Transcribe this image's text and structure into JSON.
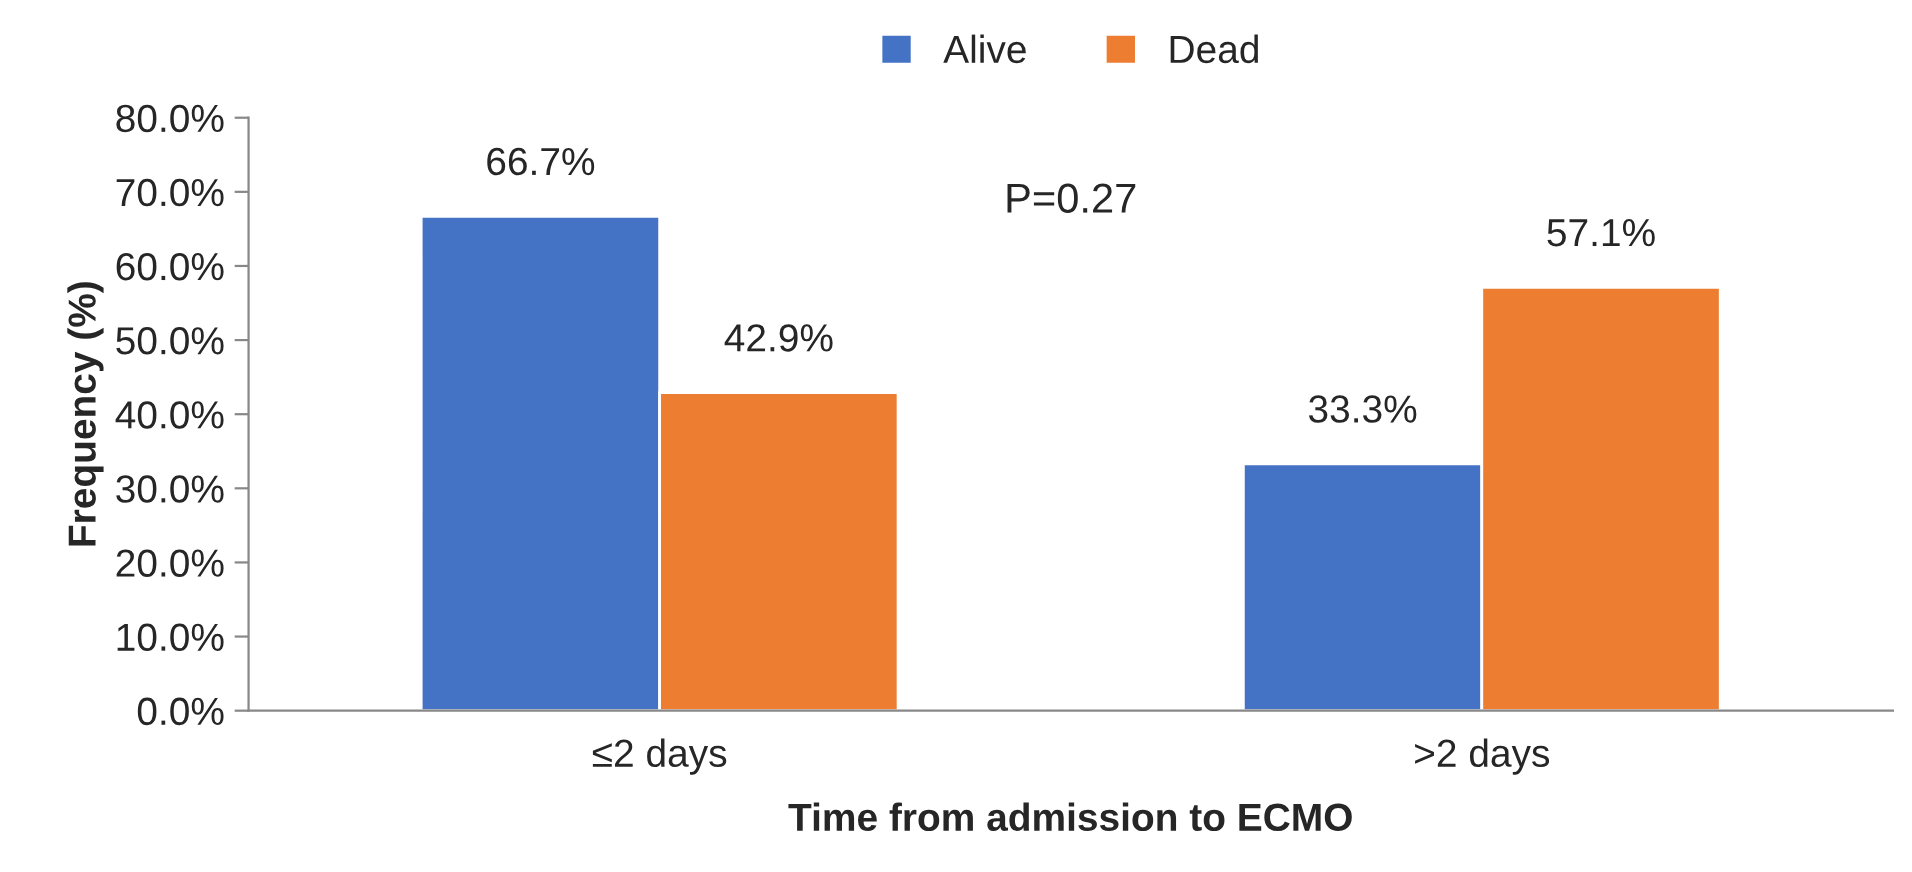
{
  "chart_data": {
    "type": "bar",
    "xlabel": "Time from admission to ECMO",
    "ylabel": "Frequency (%)",
    "categories": [
      "≤2 days",
      ">2 days"
    ],
    "series": [
      {
        "name": "Alive",
        "color": "#4472c4",
        "values": [
          66.7,
          33.3
        ],
        "value_labels": [
          "66.7%",
          "33.3%"
        ]
      },
      {
        "name": "Dead",
        "color": "#ed7d31",
        "values": [
          42.9,
          57.1
        ],
        "value_labels": [
          "42.9%",
          "57.1%"
        ]
      }
    ],
    "ylim": [
      0,
      80
    ],
    "yticks": [
      {
        "value": 0,
        "label": "0.0%"
      },
      {
        "value": 10,
        "label": "10.0%"
      },
      {
        "value": 20,
        "label": "20.0%"
      },
      {
        "value": 30,
        "label": "30.0%"
      },
      {
        "value": 40,
        "label": "40.0%"
      },
      {
        "value": 50,
        "label": "50.0%"
      },
      {
        "value": 60,
        "label": "60.0%"
      },
      {
        "value": 70,
        "label": "70.0%"
      },
      {
        "value": 80,
        "label": "80.0%"
      }
    ],
    "annotations": [
      "P=0.27"
    ],
    "grid": false,
    "legend": "top"
  }
}
